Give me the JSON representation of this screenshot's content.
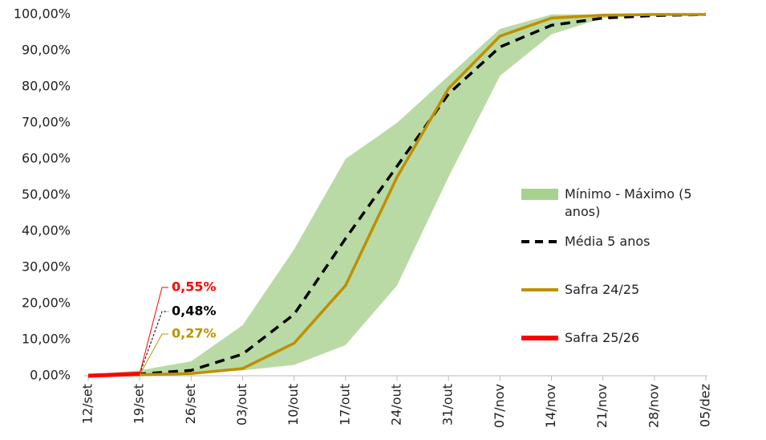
{
  "chart_data": {
    "type": "line",
    "categories": [
      "12/set",
      "19/set",
      "26/set",
      "03/out",
      "10/out",
      "17/out",
      "24/out",
      "31/out",
      "07/nov",
      "14/nov",
      "21/nov",
      "28/nov",
      "05/dez"
    ],
    "ylim": [
      0,
      100
    ],
    "yticks": [
      {
        "value": 0,
        "label": "0,00%"
      },
      {
        "value": 10,
        "label": "10,00%"
      },
      {
        "value": 20,
        "label": "20,00%"
      },
      {
        "value": 30,
        "label": "30,00%"
      },
      {
        "value": 40,
        "label": "40,00%"
      },
      {
        "value": 50,
        "label": "50,00%"
      },
      {
        "value": 60,
        "label": "60,00%"
      },
      {
        "value": 70,
        "label": "70,00%"
      },
      {
        "value": 80,
        "label": "80,00%"
      },
      {
        "value": 90,
        "label": "90,00%"
      },
      {
        "value": 100,
        "label": "100,00%"
      }
    ],
    "band": {
      "name": "Mínimo - Máximo (5 anos)",
      "color": "#a9d18e",
      "low": [
        0,
        0.3,
        0.5,
        1.5,
        3,
        8.5,
        25,
        55,
        83,
        94.5,
        99,
        99.8,
        100
      ],
      "high": [
        0.3,
        1.5,
        4,
        14,
        35,
        60,
        70,
        83,
        96,
        100,
        100,
        100,
        100
      ]
    },
    "series": [
      {
        "name": "Média 5 anos",
        "color": "#000000",
        "dash": true,
        "values": [
          0,
          0.48,
          1.5,
          6,
          17,
          38,
          58,
          78,
          91,
          97,
          99,
          99.7,
          100
        ],
        "value_labels": [
          null,
          "0,48%",
          null,
          null,
          null,
          null,
          null,
          null,
          null,
          null,
          null,
          null,
          null
        ]
      },
      {
        "name": "Safra 24/25",
        "color": "#bf8f00",
        "dash": false,
        "values": [
          0,
          0.27,
          0.6,
          2,
          9,
          25,
          55,
          79.5,
          94,
          99,
          99.8,
          100,
          100
        ],
        "value_labels": [
          null,
          "0,27%",
          null,
          null,
          null,
          null,
          null,
          null,
          null,
          null,
          null,
          null,
          null
        ]
      },
      {
        "name": "Safra 25/26",
        "color": "#ff0000",
        "dash": false,
        "values": [
          0,
          0.55,
          null,
          null,
          null,
          null,
          null,
          null,
          null,
          null,
          null,
          null,
          null
        ],
        "value_labels": [
          null,
          "0,55%",
          null,
          null,
          null,
          null,
          null,
          null,
          null,
          null,
          null,
          null,
          null
        ]
      }
    ]
  }
}
